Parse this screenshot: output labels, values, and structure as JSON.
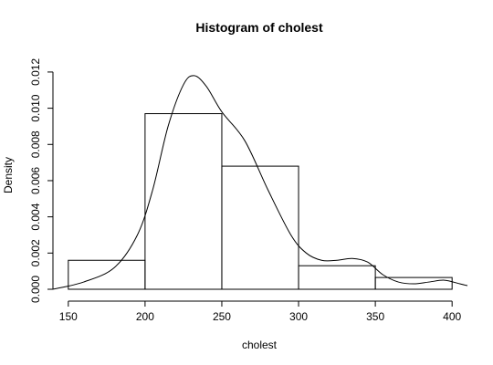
{
  "chart_data": {
    "type": "histogram",
    "title": "Histogram of cholest",
    "xlabel": "cholest",
    "ylabel": "Density",
    "xlim": [
      140,
      410
    ],
    "ylim": [
      0,
      0.0125
    ],
    "x_ticks": [
      150,
      200,
      250,
      300,
      350,
      400
    ],
    "x_tick_labels": [
      "150",
      "200",
      "250",
      "300",
      "350",
      "400"
    ],
    "y_ticks": [
      0,
      0.002,
      0.004,
      0.006,
      0.008,
      0.01,
      0.012
    ],
    "y_tick_labels": [
      "0.000",
      "0.002",
      "0.004",
      "0.006",
      "0.008",
      "0.010",
      "0.012"
    ],
    "grid": false,
    "bins": [
      {
        "start": 150,
        "end": 200,
        "density": 0.0016
      },
      {
        "start": 200,
        "end": 250,
        "density": 0.0097
      },
      {
        "start": 250,
        "end": 300,
        "density": 0.0068
      },
      {
        "start": 300,
        "end": 350,
        "density": 0.0013
      },
      {
        "start": 350,
        "end": 400,
        "density": 0.00065
      }
    ],
    "density_curve": {
      "x": [
        140,
        160,
        180,
        195,
        205,
        215,
        225,
        232,
        240,
        250,
        265,
        280,
        295,
        305,
        315,
        325,
        335,
        345,
        355,
        365,
        375,
        385,
        395,
        405,
        410
      ],
      "y": [
        0.0,
        0.0004,
        0.0012,
        0.003,
        0.0055,
        0.009,
        0.0113,
        0.0118,
        0.0112,
        0.0098,
        0.0082,
        0.0055,
        0.003,
        0.002,
        0.0016,
        0.0016,
        0.0017,
        0.0015,
        0.0008,
        0.0004,
        0.0003,
        0.0004,
        0.0005,
        0.0003,
        0.0002
      ]
    }
  }
}
